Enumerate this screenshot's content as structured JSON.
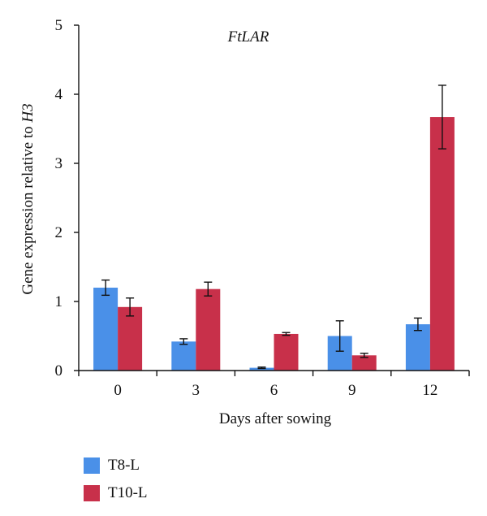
{
  "chart_data": {
    "type": "bar",
    "title": "FtLAR",
    "xlabel": "Days after sowing",
    "ylabel_prefix": "Gene expression relative to ",
    "ylabel_gene": "H3",
    "categories": [
      "0",
      "3",
      "6",
      "9",
      "12"
    ],
    "ylim": [
      0,
      5
    ],
    "yticks": [
      0,
      1,
      2,
      3,
      4,
      5
    ],
    "grid": false,
    "legend_position": "bottom-left",
    "series": [
      {
        "name": "T8-L",
        "color": "#4a90e8",
        "values": [
          1.2,
          0.42,
          0.04,
          0.5,
          0.67
        ],
        "errors": [
          0.11,
          0.04,
          0.01,
          0.22,
          0.09
        ]
      },
      {
        "name": "T10-L",
        "color": "#c8304a",
        "values": [
          0.92,
          1.18,
          0.53,
          0.22,
          3.67
        ],
        "errors": [
          0.13,
          0.1,
          0.02,
          0.03,
          0.46
        ]
      }
    ]
  }
}
